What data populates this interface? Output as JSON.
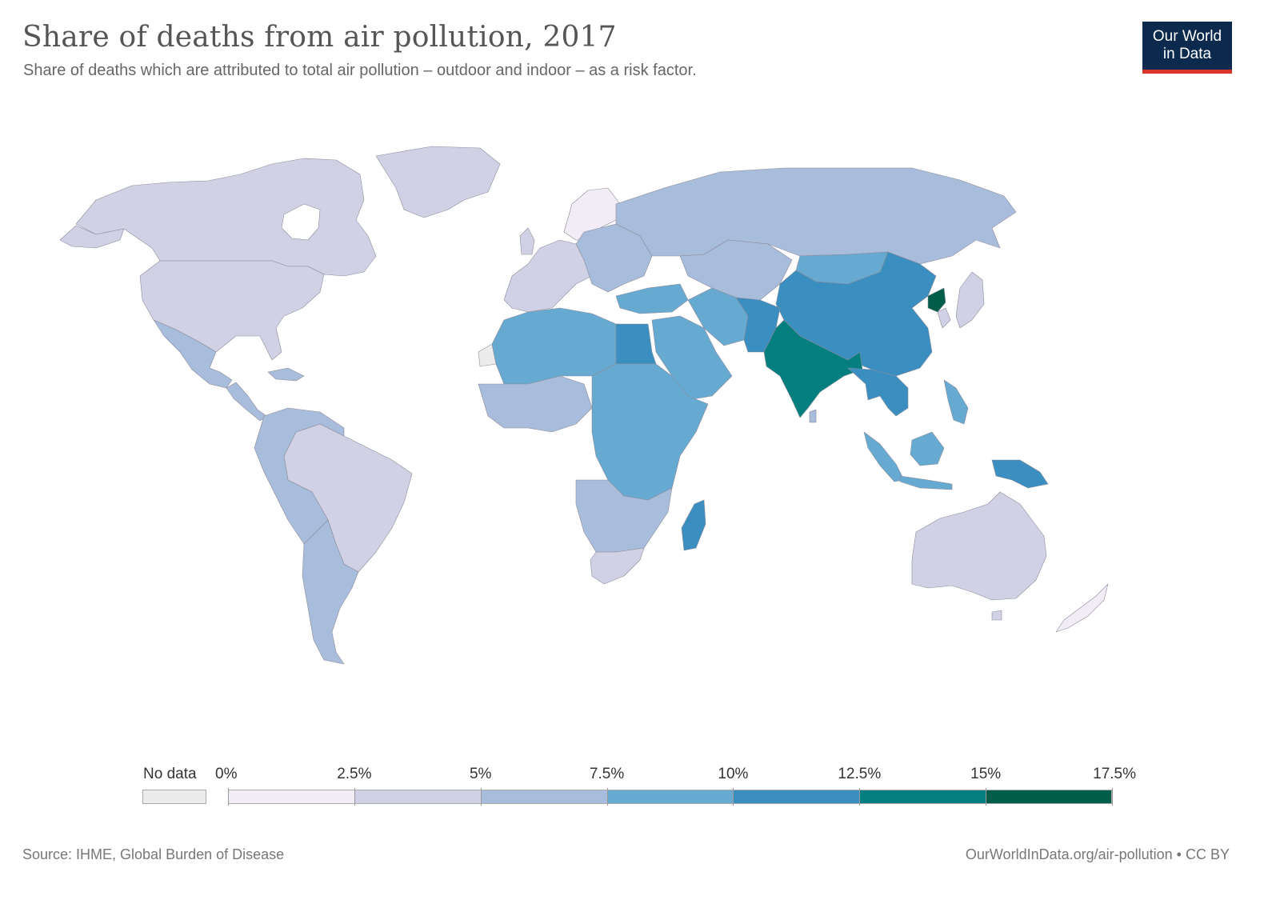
{
  "header": {
    "title": "Share of deaths from air pollution, 2017",
    "subtitle": "Share of deaths which are attributed to total air pollution – outdoor and indoor – as a risk factor.",
    "logo_line1": "Our World",
    "logo_line2": "in Data"
  },
  "legend": {
    "no_data_label": "No data",
    "no_data_color": "#ececec",
    "tick_labels": [
      "0%",
      "2.5%",
      "5%",
      "7.5%",
      "10%",
      "12.5%",
      "15%",
      "17.5%"
    ],
    "bins": [
      {
        "from": 0,
        "to": 2.5,
        "color": "#f2ecf6"
      },
      {
        "from": 2.5,
        "to": 5,
        "color": "#d1d1e6"
      },
      {
        "from": 5,
        "to": 7.5,
        "color": "#a8bcdb"
      },
      {
        "from": 7.5,
        "to": 10,
        "color": "#66aad1"
      },
      {
        "from": 10,
        "to": 12.5,
        "color": "#3a8fc0"
      },
      {
        "from": 12.5,
        "to": 15,
        "color": "#047f80"
      },
      {
        "from": 15,
        "to": 17.5,
        "color": "#015c4a"
      }
    ]
  },
  "map_data": {
    "year": 2017,
    "unit": "%",
    "regions": [
      {
        "name": "Greenland",
        "value_bin": "2.5-5%"
      },
      {
        "name": "Canada",
        "value_bin": "2.5-5%"
      },
      {
        "name": "United States",
        "value_bin": "2.5-5%"
      },
      {
        "name": "Mexico",
        "value_bin": "5-7.5%"
      },
      {
        "name": "Central America",
        "value_bin": "5-7.5%"
      },
      {
        "name": "Brazil",
        "value_bin": "2.5-5%"
      },
      {
        "name": "Andean South America",
        "value_bin": "5-7.5%"
      },
      {
        "name": "Argentina",
        "value_bin": "5-7.5%"
      },
      {
        "name": "Scandinavia",
        "value_bin": "0-2.5%"
      },
      {
        "name": "Western Europe",
        "value_bin": "2.5-5%"
      },
      {
        "name": "Eastern Europe",
        "value_bin": "5-7.5%"
      },
      {
        "name": "Russia",
        "value_bin": "5-7.5%"
      },
      {
        "name": "Mongolia",
        "value_bin": "7.5-10%"
      },
      {
        "name": "China",
        "value_bin": "10-12.5%"
      },
      {
        "name": "North Korea",
        "value_bin": "15-17.5%"
      },
      {
        "name": "Japan",
        "value_bin": "2.5-5%"
      },
      {
        "name": "India",
        "value_bin": "12.5-15%"
      },
      {
        "name": "Afghanistan & Pakistan",
        "value_bin": "10-12.5%"
      },
      {
        "name": "Middle East",
        "value_bin": "7.5-10%"
      },
      {
        "name": "Egypt",
        "value_bin": "10-12.5%"
      },
      {
        "name": "North Africa",
        "value_bin": "7.5-10%"
      },
      {
        "name": "Western Sahara",
        "value_bin": "No data"
      },
      {
        "name": "Central & East Africa",
        "value_bin": "7.5-10%"
      },
      {
        "name": "Southern Africa",
        "value_bin": "5-7.5%"
      },
      {
        "name": "South Africa",
        "value_bin": "2.5-5%"
      },
      {
        "name": "Madagascar",
        "value_bin": "10-12.5%"
      },
      {
        "name": "Southeast Asia",
        "value_bin": "10-12.5%"
      },
      {
        "name": "Indonesia",
        "value_bin": "7.5-10%"
      },
      {
        "name": "Papua New Guinea",
        "value_bin": "10-12.5%"
      },
      {
        "name": "Australia",
        "value_bin": "2.5-5%"
      },
      {
        "name": "New Zealand",
        "value_bin": "0-2.5%"
      }
    ]
  },
  "footer": {
    "source": "Source: IHME, Global Burden of Disease",
    "license": "OurWorldInData.org/air-pollution • CC BY"
  }
}
